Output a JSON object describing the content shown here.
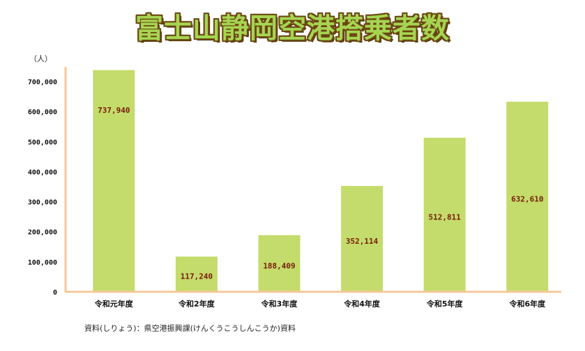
{
  "chart_data": {
    "type": "bar",
    "title": "富士山静岡空港搭乗者数",
    "unit": "（人）",
    "categories": [
      "令和元年度",
      "令和2年度",
      "令和3年度",
      "令和4年度",
      "令和5年度",
      "令和6年度"
    ],
    "values": [
      737940,
      117240,
      188409,
      352114,
      512811,
      632610
    ],
    "value_labels": [
      "737,940",
      "117,240",
      "188,409",
      "352,114",
      "512,811",
      "632,610"
    ],
    "yticks": [
      0,
      100000,
      200000,
      300000,
      400000,
      500000,
      600000,
      700000
    ],
    "ytick_labels": [
      "0",
      "100,000",
      "200,000",
      "300,000",
      "400,000",
      "500,000",
      "600,000",
      "700,000"
    ],
    "ylim": [
      0,
      750000
    ],
    "grid": false,
    "colors": {
      "bar": "#c3dc6b",
      "axis": "#f4c99a",
      "value_label": "#7a1b0b"
    }
  },
  "footer": {
    "source": "資料(しりょう)：県空港振興課(けんくうこうしんこうか)資料"
  }
}
